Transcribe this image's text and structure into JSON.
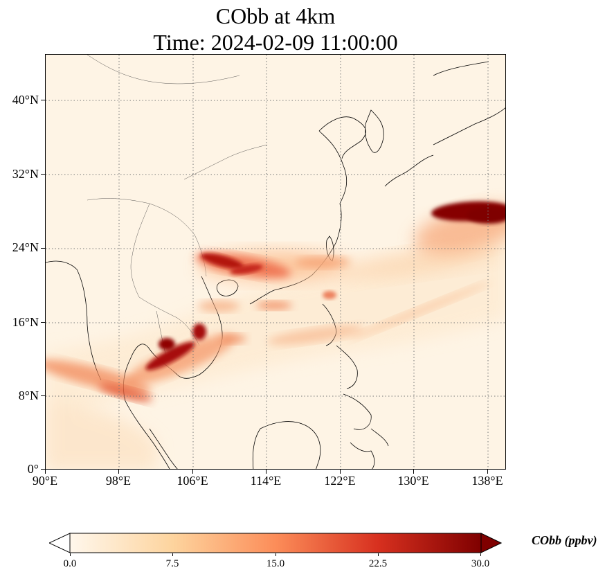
{
  "title": {
    "line1": "CObb at 4km",
    "line2": "Time: 2024-02-09 11:00:00"
  },
  "map": {
    "extent_lon": [
      90,
      140
    ],
    "extent_lat": [
      0,
      45
    ],
    "lon_ticks": [
      "90°E",
      "98°E",
      "106°E",
      "114°E",
      "122°E",
      "130°E",
      "138°E"
    ],
    "lat_ticks": [
      "0°",
      "8°N",
      "16°N",
      "24°N",
      "32°N",
      "40°N"
    ],
    "gridlines": "dotted",
    "background_color": "#fef4e5",
    "plumes": [
      {
        "name": "south-china-plume",
        "lon": [
          105.5,
          118
        ],
        "lat": [
          20,
          23.5
        ],
        "level": "high"
      },
      {
        "name": "northern-pacific-plume",
        "lon": [
          132,
          140
        ],
        "lat": [
          27,
          29
        ],
        "level": "max"
      },
      {
        "name": "cambodia-plume",
        "lon": [
          100,
          108
        ],
        "lat": [
          10,
          15.5
        ],
        "level": "high"
      },
      {
        "name": "bay-of-bengal-plume",
        "lon": [
          90,
          101
        ],
        "lat": [
          8,
          11
        ],
        "level": "medium"
      }
    ]
  },
  "colorbar": {
    "label": "CObb (ppbv)",
    "ticks": [
      "0.0",
      "7.5",
      "15.0",
      "22.5",
      "30.0"
    ],
    "vmin": 0,
    "vmax": 30,
    "colormap": "OrRd",
    "colors": [
      "#fff7ec",
      "#fdd49e",
      "#fc8d59",
      "#d7301f",
      "#7f0000"
    ]
  }
}
